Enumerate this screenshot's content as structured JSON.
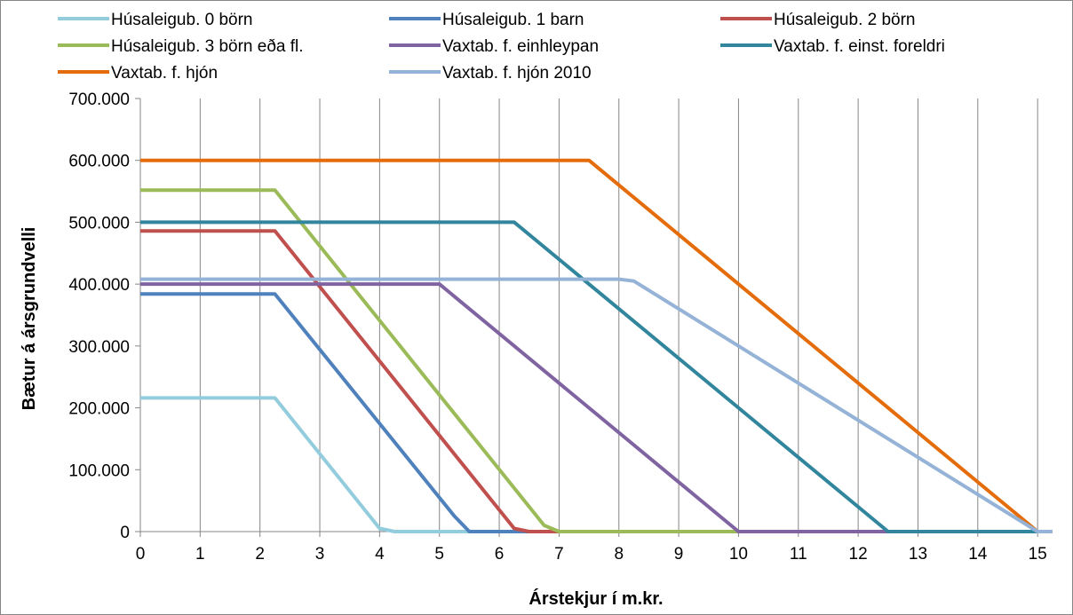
{
  "chart_data": {
    "type": "line",
    "xlabel": "Árstekjur í m.kr.",
    "ylabel": "Bætur á ársgrundvelli",
    "xlim": [
      0,
      15.25
    ],
    "ylim": [
      0,
      700000
    ],
    "x_ticks": [
      0,
      1,
      2,
      3,
      4,
      5,
      6,
      7,
      8,
      9,
      10,
      11,
      12,
      13,
      14,
      15
    ],
    "x_tick_labels": [
      "0",
      "1",
      "2",
      "3",
      "4",
      "5",
      "6",
      "7",
      "8",
      "9",
      "10",
      "11",
      "12",
      "13",
      "14",
      "15"
    ],
    "y_ticks": [
      0,
      100000,
      200000,
      300000,
      400000,
      500000,
      600000,
      700000
    ],
    "y_tick_labels": [
      "0",
      "100.000",
      "200.000",
      "300.000",
      "400.000",
      "500.000",
      "600.000",
      "700.000"
    ],
    "grid": {
      "vertical": true,
      "horizontal": false
    },
    "legend_position": "top",
    "series": [
      {
        "name": "Húsaleigub. 0 börn",
        "color": "#93CDDD",
        "points": [
          [
            0,
            216000
          ],
          [
            2.25,
            216000
          ],
          [
            4,
            5000
          ],
          [
            4.25,
            0
          ],
          [
            15.25,
            0
          ]
        ]
      },
      {
        "name": "Húsaleigub. 1 barn",
        "color": "#4F81BD",
        "points": [
          [
            0,
            384000
          ],
          [
            2.25,
            384000
          ],
          [
            5.25,
            25000
          ],
          [
            5.5,
            0
          ],
          [
            15.25,
            0
          ]
        ]
      },
      {
        "name": "Húsaleigub. 2 börn",
        "color": "#C0504D",
        "points": [
          [
            0,
            486000
          ],
          [
            2.25,
            486000
          ],
          [
            6.25,
            5000
          ],
          [
            6.5,
            0
          ],
          [
            15.25,
            0
          ]
        ]
      },
      {
        "name": "Húsaleigub. 3 börn eða fl.",
        "color": "#9BBB59",
        "points": [
          [
            0,
            552000
          ],
          [
            2.25,
            552000
          ],
          [
            6.75,
            10000
          ],
          [
            7,
            0
          ],
          [
            15.25,
            0
          ]
        ]
      },
      {
        "name": "Vaxtab. f. einhleypan",
        "color": "#8064A2",
        "points": [
          [
            0,
            400000
          ],
          [
            5,
            400000
          ],
          [
            10,
            0
          ],
          [
            15.25,
            0
          ]
        ]
      },
      {
        "name": "Vaxtab. f. einst. foreldri",
        "color": "#31859C",
        "points": [
          [
            0,
            500000
          ],
          [
            6.25,
            500000
          ],
          [
            12.5,
            0
          ],
          [
            15.25,
            0
          ]
        ]
      },
      {
        "name": "Vaxtab. f. hjón",
        "color": "#E46C0A",
        "points": [
          [
            0,
            600000
          ],
          [
            7.5,
            600000
          ],
          [
            15,
            0
          ],
          [
            15.25,
            0
          ]
        ]
      },
      {
        "name": "Vaxtab. f. hjón 2010",
        "color": "#95B3D7",
        "points": [
          [
            0,
            408000
          ],
          [
            8,
            408000
          ],
          [
            8.25,
            405000
          ],
          [
            15,
            0
          ],
          [
            15.25,
            0
          ]
        ]
      }
    ]
  }
}
